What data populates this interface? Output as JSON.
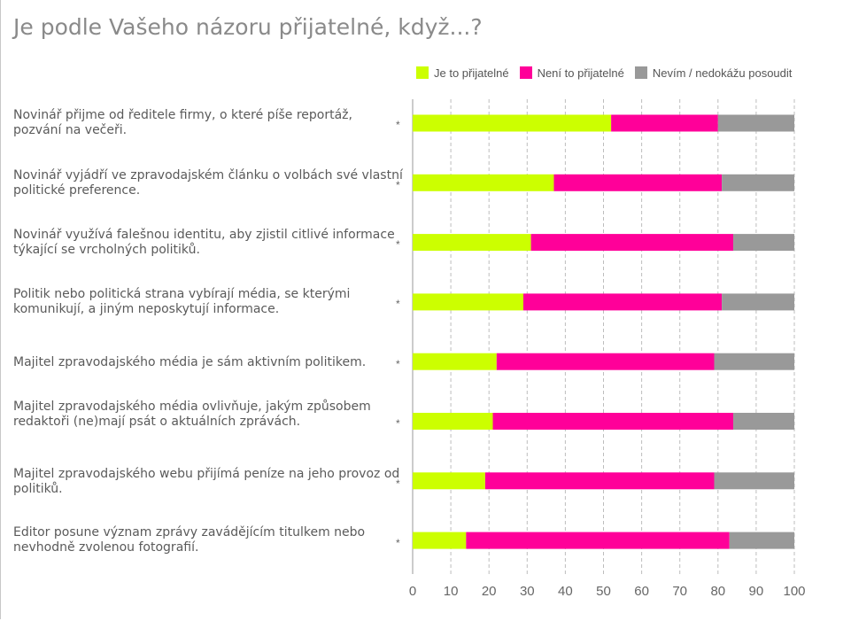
{
  "title": "Je podle Vašeho názoru přijatelné, když...?",
  "colors": {
    "acceptable": "#ccff00",
    "not_acceptable": "#ff0099",
    "dont_know": "#999999"
  },
  "chart_data": {
    "type": "bar",
    "orientation": "horizontal",
    "stacked": true,
    "title": "Je podle Vašeho názoru přijatelné, když...?",
    "xlim": [
      0,
      100
    ],
    "xticks": [
      "0",
      "10",
      "20",
      "30",
      "40",
      "50",
      "60",
      "70",
      "80",
      "90",
      "100"
    ],
    "grid": "vertical dashed",
    "legend_position": "top",
    "categories": [
      "Novinář přijme od ředitele firmy, o které píše reportáž, pozvání na večeři.",
      "Novinář vyjádří ve zpravodajském článku o volbách své vlastní politické preference.",
      "Novinář využívá falešnou identitu, aby zjistil citlivé informace týkající se vrcholných politiků.",
      "Politik nebo politická strana vybírají média, se kterými komunikují, a jiným neposkytují informace.",
      "Majitel zpravodajského média je sám aktivním politikem.",
      "Majitel zpravodajského média ovlivňuje, jakým způsobem redaktoři (ne)mají psát o aktuálních zprávách.",
      "Majitel zpravodajského webu přijímá peníze na jeho provoz od politiků.",
      "Editor posune význam zprávy zavádějícím titulkem nebo nevhodně zvolenou fotografií."
    ],
    "row_markers": [
      "*",
      "*",
      "*",
      "*",
      "*",
      "*",
      "*",
      "*"
    ],
    "series": [
      {
        "name": "Je to přijatelné",
        "color": "#ccff00",
        "values": [
          52,
          37,
          31,
          29,
          22,
          21,
          19,
          14
        ]
      },
      {
        "name": "Není to přijatelné",
        "color": "#ff0099",
        "values": [
          28,
          44,
          53,
          52,
          57,
          63,
          60,
          69
        ]
      },
      {
        "name": "Nevím / nedokážu posoudit",
        "color": "#999999",
        "values": [
          20,
          19,
          16,
          19,
          21,
          16,
          21,
          17
        ]
      }
    ]
  }
}
